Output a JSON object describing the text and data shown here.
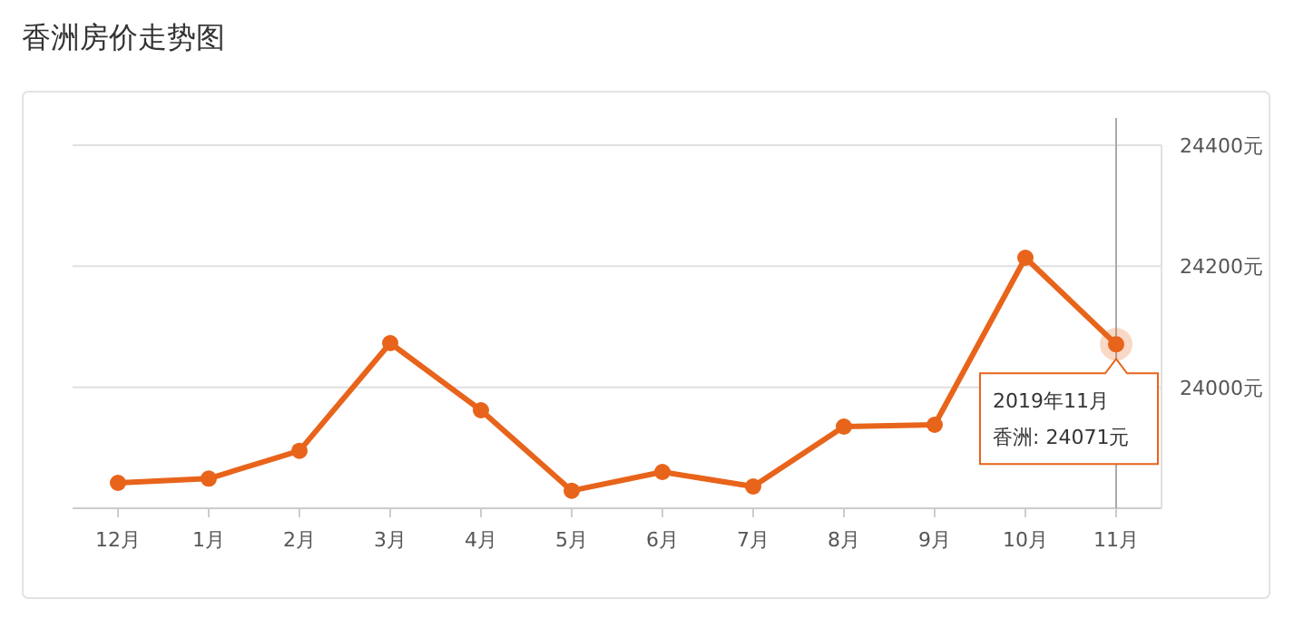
{
  "chart_data": {
    "type": "line",
    "title": "香洲房价走势图",
    "categories": [
      "12月",
      "1月",
      "2月",
      "3月",
      "4月",
      "5月",
      "6月",
      "7月",
      "8月",
      "9月",
      "10月",
      "11月"
    ],
    "series": [
      {
        "color": "#e8641b",
        "values": [
          23842,
          23849,
          23895,
          24073,
          23962,
          23829,
          23860,
          23836,
          23935,
          23938,
          24214,
          24071
        ]
      }
    ],
    "ylim": [
      23800,
      24400
    ],
    "yticks": [
      {
        "value": 23800,
        "label": null
      },
      {
        "value": 24000,
        "label": "24000元"
      },
      {
        "value": 24200,
        "label": "24200元"
      },
      {
        "value": 24400,
        "label": "24400元"
      }
    ],
    "grid": "y",
    "marker": "circle",
    "line_style": "solid",
    "ref_lines": [
      {
        "axis": "x",
        "value": "11月",
        "color": "#aaaaaa"
      }
    ],
    "annotations": [
      "2019年11月",
      "香洲:  24071元"
    ]
  }
}
